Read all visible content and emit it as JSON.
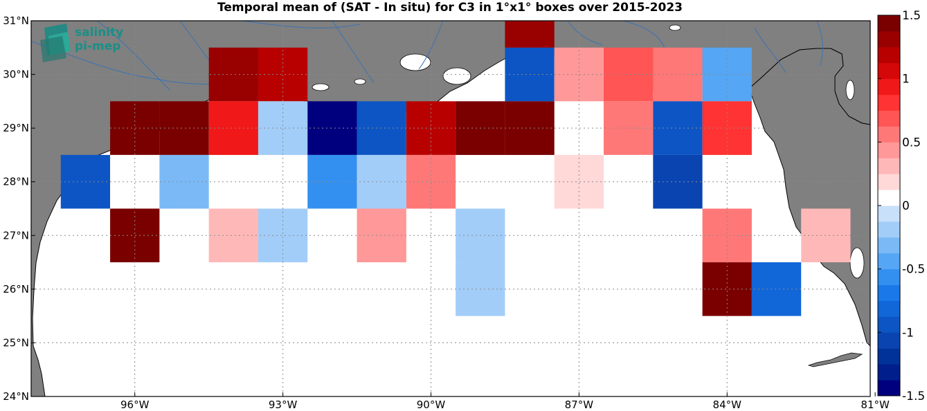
{
  "title": "Temporal mean of (SAT - In situ) for C3 in 1°x1° boxes over 2015-2023",
  "logo": {
    "line1": "salinity",
    "line2": "pi-mep"
  },
  "axes": {
    "lon_ticks": [
      "96°W",
      "93°W",
      "90°W",
      "87°W",
      "84°W",
      "81°W"
    ],
    "lat_ticks": [
      "24°N",
      "25°N",
      "26°N",
      "27°N",
      "28°N",
      "29°N",
      "30°N",
      "31°N"
    ]
  },
  "colorbar": {
    "ticks": [
      "1.5",
      "1",
      "0.5",
      "0",
      "-0.5",
      "-1",
      "-1.5"
    ],
    "tick_values": [
      1.5,
      1,
      0.5,
      0,
      -0.5,
      -1,
      -1.5
    ],
    "range": [
      -1.5,
      1.5
    ],
    "levels": 24
  },
  "colors": {
    "land": "#808080",
    "river": "#3a72b4",
    "grid": "#8a8a8a",
    "colormap": [
      "#00007f",
      "#001f8c",
      "#003299",
      "#0a44b0",
      "#0d55c4",
      "#1166d8",
      "#1a78e8",
      "#3390f0",
      "#55a6f4",
      "#7ab9f6",
      "#a2cdf8",
      "#c8e0fa",
      "#ffffff",
      "#ffd8d8",
      "#ffb8b8",
      "#ff9898",
      "#ff7878",
      "#ff5555",
      "#ff3333",
      "#f01818",
      "#d40808",
      "#b80000",
      "#990000",
      "#7a0000"
    ]
  },
  "chart_data": {
    "type": "heatmap",
    "title": "Temporal mean of (SAT - In situ) for C3 in 1°x1° boxes over 2015-2023",
    "xlabel": "",
    "ylabel": "",
    "xlim": [
      -98,
      -81
    ],
    "ylim": [
      24,
      31
    ],
    "box_size_deg": 1,
    "grid": true,
    "colorbar_label": "",
    "cells": [
      {
        "lon": -97,
        "lat": 28,
        "value": -1.0
      },
      {
        "lon": -96,
        "lat": 29,
        "value": 1.5
      },
      {
        "lon": -96,
        "lat": 28,
        "value": 0.1
      },
      {
        "lon": -96,
        "lat": 27,
        "value": 1.4
      },
      {
        "lon": -95,
        "lat": 29,
        "value": 1.5
      },
      {
        "lon": -95,
        "lat": 28,
        "value": -0.3
      },
      {
        "lon": -94,
        "lat": 30,
        "value": 1.3
      },
      {
        "lon": -94,
        "lat": 29,
        "value": 0.9
      },
      {
        "lon": -94,
        "lat": 27,
        "value": 0.25
      },
      {
        "lon": -93,
        "lat": 30,
        "value": 1.2
      },
      {
        "lon": -93,
        "lat": 29,
        "value": -0.25
      },
      {
        "lon": -93,
        "lat": 27,
        "value": -0.15
      },
      {
        "lon": -92,
        "lat": 29,
        "value": -1.5
      },
      {
        "lon": -92,
        "lat": 28,
        "value": -0.6
      },
      {
        "lon": -91,
        "lat": 29,
        "value": -1.0
      },
      {
        "lon": -91,
        "lat": 28,
        "value": -0.15
      },
      {
        "lon": -91,
        "lat": 27,
        "value": 0.4
      },
      {
        "lon": -90,
        "lat": 29,
        "value": 1.2
      },
      {
        "lon": -90,
        "lat": 28,
        "value": 0.5
      },
      {
        "lon": -89,
        "lat": 29,
        "value": 1.5
      },
      {
        "lon": -89,
        "lat": 26,
        "value": -0.15
      },
      {
        "lon": -89,
        "lat": 27,
        "value": -0.15
      },
      {
        "lon": -88,
        "lat": 30,
        "value": -1.0
      },
      {
        "lon": -88,
        "lat": 29,
        "value": 1.5
      },
      {
        "lon": -88,
        "lat": 31,
        "value": 1.3
      },
      {
        "lon": -87,
        "lat": 30,
        "value": 0.45
      },
      {
        "lon": -87,
        "lat": 28,
        "value": 0.2
      },
      {
        "lon": -86,
        "lat": 30,
        "value": 0.7
      },
      {
        "lon": -86,
        "lat": 29,
        "value": 0.55
      },
      {
        "lon": -86,
        "lat": 28,
        "value": 0.1
      },
      {
        "lon": -85,
        "lat": 30,
        "value": 0.6
      },
      {
        "lon": -85,
        "lat": 29,
        "value": -0.95
      },
      {
        "lon": -85,
        "lat": 28,
        "value": -1.1
      },
      {
        "lon": -84,
        "lat": 30,
        "value": -0.4
      },
      {
        "lon": -84,
        "lat": 29,
        "value": 0.85
      },
      {
        "lon": -84,
        "lat": 27,
        "value": 0.55
      },
      {
        "lon": -84,
        "lat": 26,
        "value": 1.4
      },
      {
        "lon": -83,
        "lat": 26,
        "value": -0.85
      },
      {
        "lon": -82,
        "lat": 27,
        "value": 0.3
      }
    ]
  }
}
